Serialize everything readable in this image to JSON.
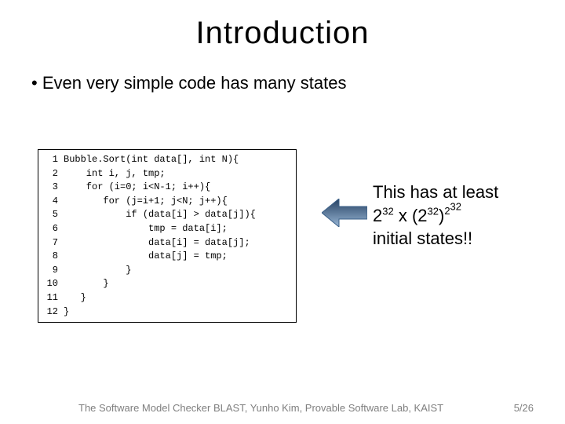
{
  "title": "Introduction",
  "bullet": "Even very simple code has many states",
  "code": {
    "lines": [
      {
        "n": "1",
        "t": "Bubble.Sort(int data[], int N){"
      },
      {
        "n": "2",
        "t": "    int i, j, tmp;"
      },
      {
        "n": "3",
        "t": "    for (i=0; i<N-1; i++){"
      },
      {
        "n": "4",
        "t": "       for (j=i+1; j<N; j++){"
      },
      {
        "n": "5",
        "t": "           if (data[i] > data[j]){"
      },
      {
        "n": "6",
        "t": "               tmp = data[i];"
      },
      {
        "n": "7",
        "t": "               data[i] = data[j];"
      },
      {
        "n": "8",
        "t": "               data[j] = tmp;"
      },
      {
        "n": "9",
        "t": "           }"
      },
      {
        "n": "10",
        "t": "       }"
      },
      {
        "n": "11",
        "t": "   }"
      },
      {
        "n": "12",
        "t": "}"
      }
    ]
  },
  "callout": {
    "line1": "This has at least",
    "base1": "2",
    "sup1": "32",
    "times": " x ",
    "base2_open": "(2",
    "sup2": "32",
    "base2_close": ")",
    "base3": "2",
    "sup3": "32",
    "line3": "initial states!!"
  },
  "arrow": {
    "fill_dark": "#254061",
    "fill_light": "#98b6d5",
    "stroke": "#3a5f87"
  },
  "footer": {
    "credit": "The Software Model Checker BLAST, Yunho Kim, Provable Software Lab, KAIST",
    "page": "5/26"
  },
  "colors": {
    "text": "#000000",
    "background": "#ffffff",
    "footer_text": "#7f7f7f"
  },
  "typography": {
    "title_fontsize": 40,
    "bullet_fontsize": 22,
    "code_fontsize": 12,
    "callout_fontsize": 22,
    "footer_fontsize": 13,
    "code_font": "Courier New",
    "body_font": "Segoe UI"
  },
  "layout": {
    "slide_w": 720,
    "slide_h": 540
  }
}
